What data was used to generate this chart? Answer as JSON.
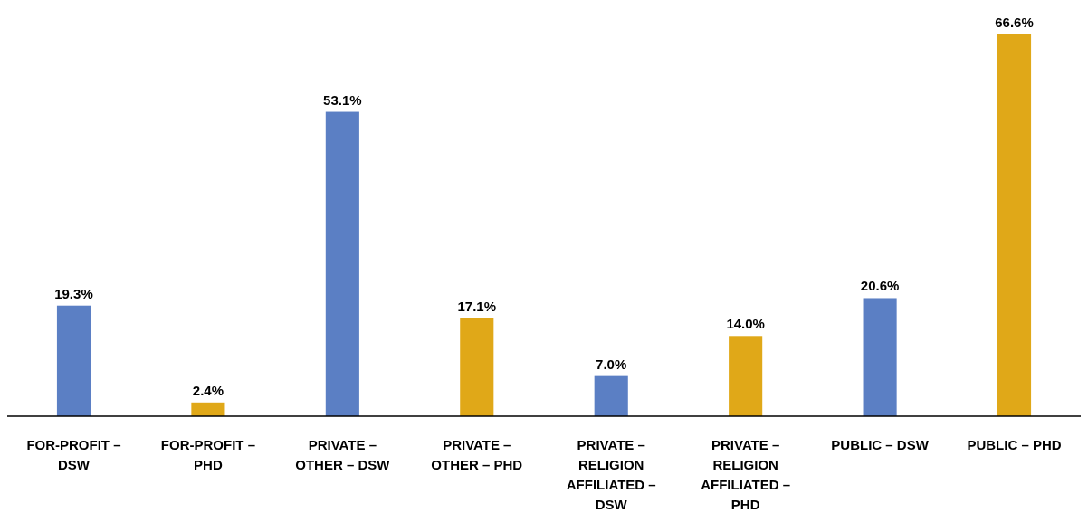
{
  "chart_data": {
    "type": "bar",
    "categories": [
      "FOR-PROFIT – DSW",
      "FOR-PROFIT – PHD",
      "PRIVATE – OTHER – DSW",
      "PRIVATE – OTHER – PHD",
      "PRIVATE – RELIGION AFFILIATED – DSW",
      "PRIVATE – RELIGION AFFILIATED – PHD",
      "PUBLIC – DSW",
      "PUBLIC – PHD"
    ],
    "values": [
      19.3,
      2.4,
      53.1,
      17.1,
      7.0,
      14.0,
      20.6,
      66.6
    ],
    "value_labels": [
      "19.3%",
      "2.4%",
      "53.1%",
      "17.1%",
      "7.0%",
      "14.0%",
      "20.6%",
      "66.6%"
    ],
    "colors": [
      "#5b7fc4",
      "#e0a818",
      "#5b7fc4",
      "#e0a818",
      "#5b7fc4",
      "#e0a818",
      "#5b7fc4",
      "#e0a818"
    ]
  }
}
